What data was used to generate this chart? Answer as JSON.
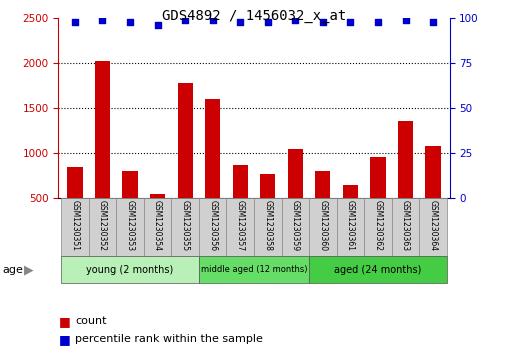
{
  "title": "GDS4892 / 1456032_x_at",
  "samples": [
    "GSM1230351",
    "GSM1230352",
    "GSM1230353",
    "GSM1230354",
    "GSM1230355",
    "GSM1230356",
    "GSM1230357",
    "GSM1230358",
    "GSM1230359",
    "GSM1230360",
    "GSM1230361",
    "GSM1230362",
    "GSM1230363",
    "GSM1230364"
  ],
  "counts": [
    840,
    2020,
    800,
    540,
    1780,
    1600,
    860,
    770,
    1040,
    800,
    640,
    960,
    1360,
    1080
  ],
  "percentile_ranks": [
    98,
    99,
    98,
    96,
    99,
    99,
    98,
    98,
    99,
    98,
    98,
    98,
    99,
    98
  ],
  "bar_color": "#cc0000",
  "dot_color": "#0000cc",
  "ylim_left": [
    500,
    2500
  ],
  "ylim_right": [
    0,
    100
  ],
  "yticks_left": [
    500,
    1000,
    1500,
    2000,
    2500
  ],
  "yticks_right": [
    0,
    25,
    50,
    75,
    100
  ],
  "groups": [
    {
      "label": "young (2 months)",
      "start": 0,
      "end": 5
    },
    {
      "label": "middle aged (12 months)",
      "start": 5,
      "end": 9
    },
    {
      "label": "aged (24 months)",
      "start": 9,
      "end": 14
    }
  ],
  "group_colors": [
    "#b8f0b8",
    "#66dd66",
    "#44cc44"
  ],
  "sample_row_color": "#d0d0d0",
  "sample_border_color": "#888888",
  "age_label": "age",
  "age_arrow_color": "#888888",
  "legend_count_label": "count",
  "legend_percentile_label": "percentile rank within the sample",
  "background_color": "#ffffff",
  "dotted_grid_color": "#000000",
  "title_fontsize": 10,
  "tick_fontsize": 7.5,
  "sample_fontsize": 5.5,
  "group_fontsize": 7,
  "legend_fontsize": 8
}
